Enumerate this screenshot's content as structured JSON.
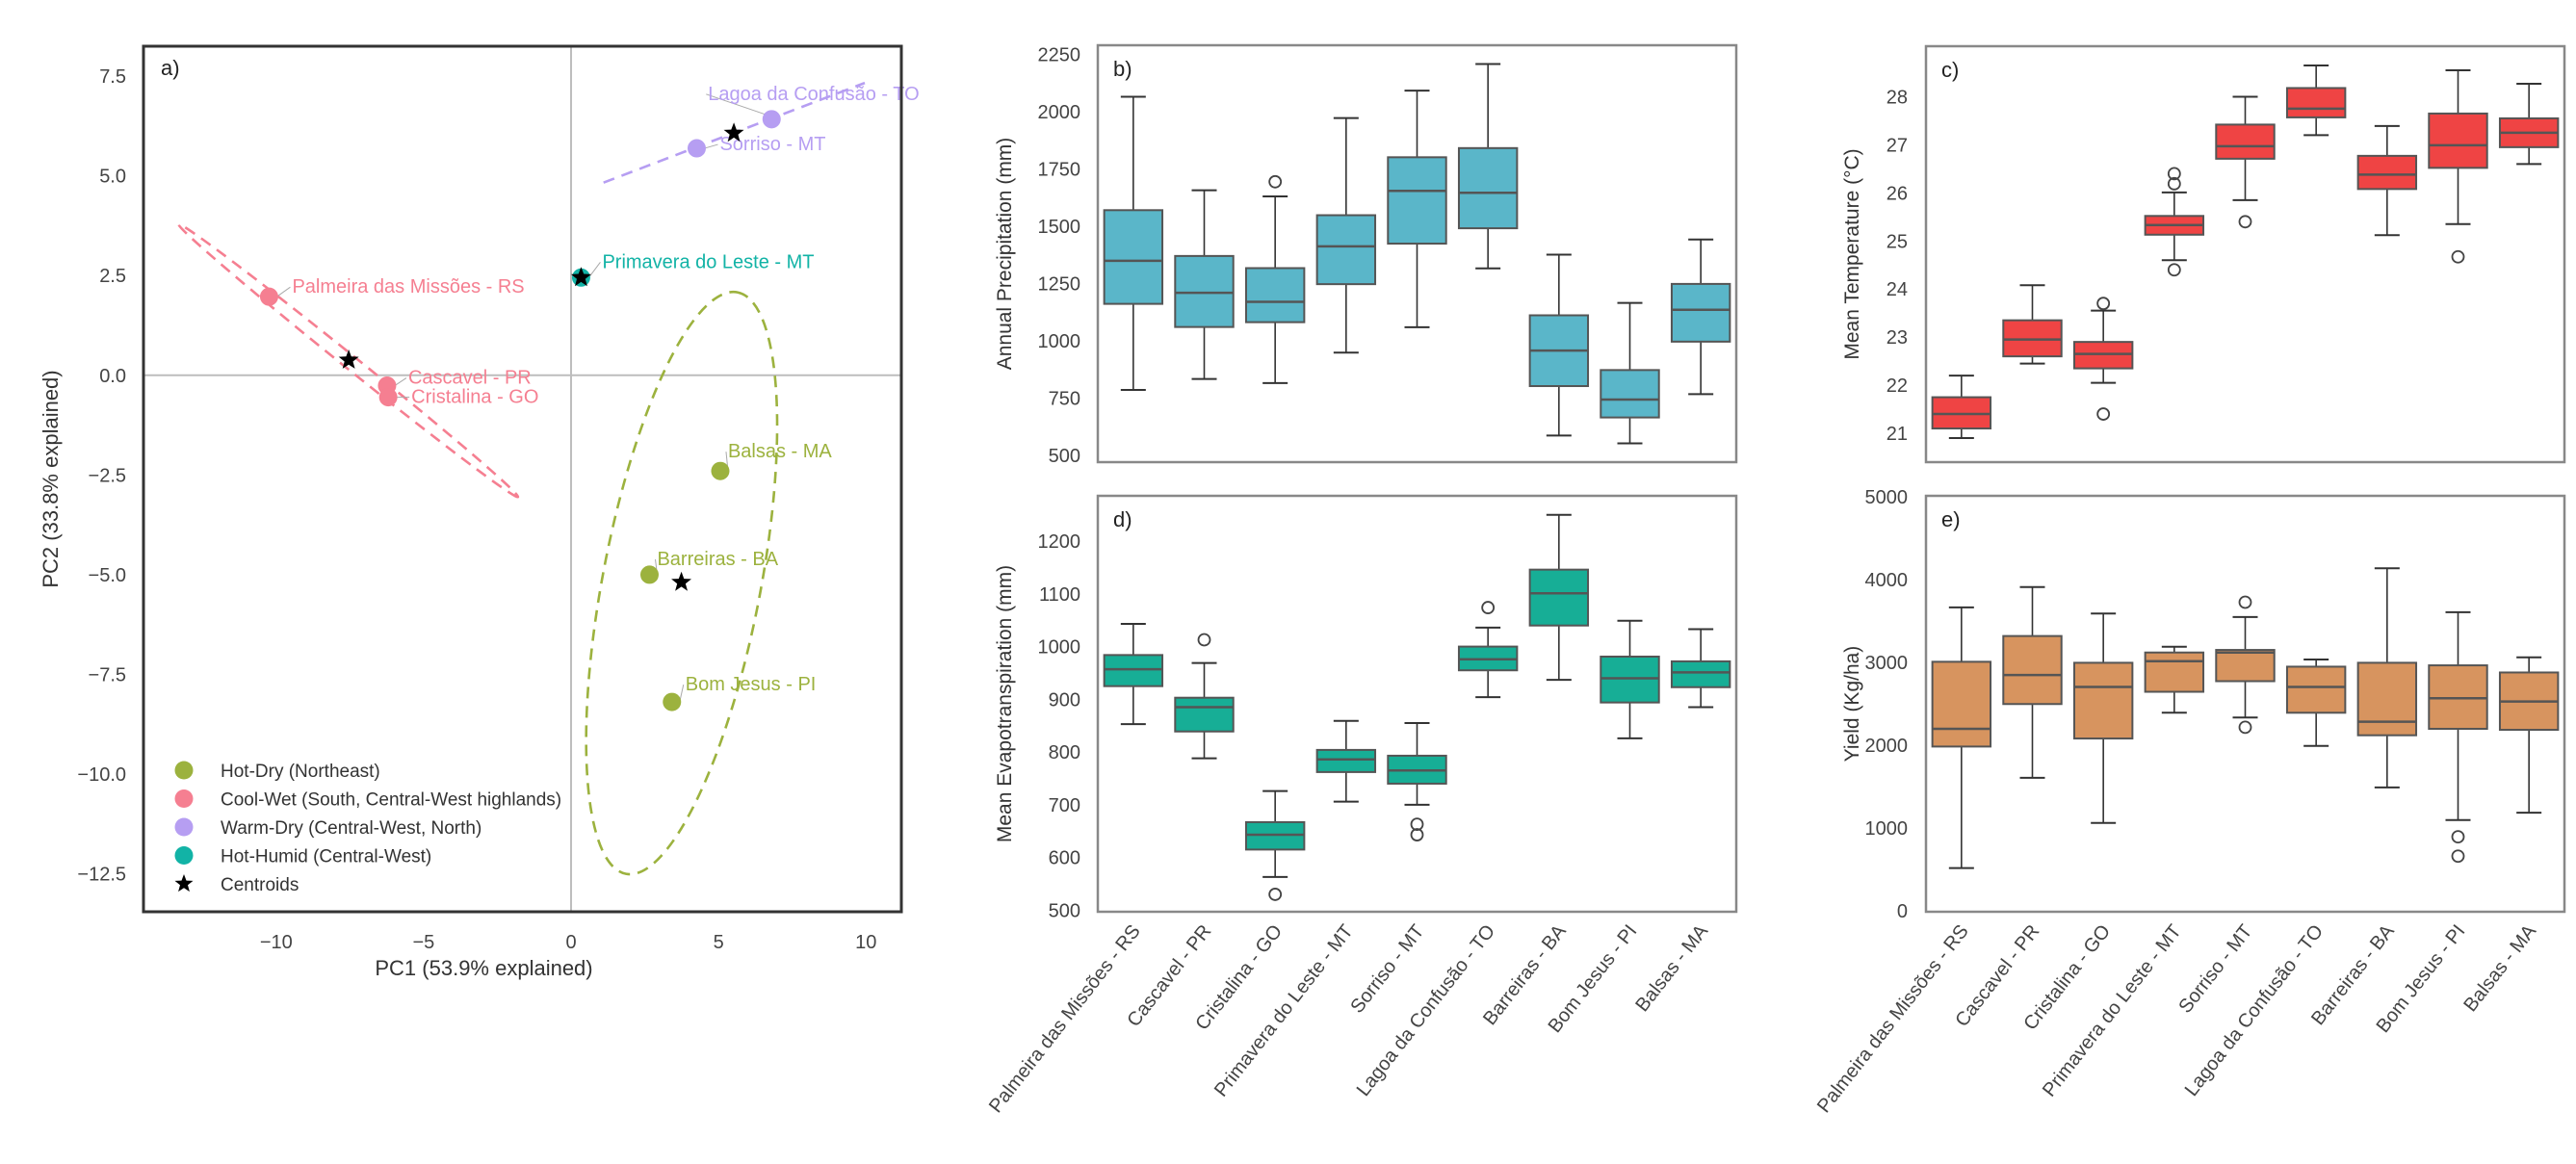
{
  "chart_data": [
    {
      "type": "scatter",
      "panel_label": "a)",
      "xlabel": "PC1 (53.9% explained)",
      "ylabel": "PC2 (33.8% explained)",
      "xlim": [
        -14.5,
        11.2
      ],
      "ylim": [
        -13.45,
        8.25
      ],
      "xticks": [
        -10,
        -5,
        0,
        5,
        10
      ],
      "xtick_labels": [
        "−10",
        "−5",
        "0",
        "5",
        "10"
      ],
      "yticks": [
        7.5,
        5.0,
        2.5,
        0.0,
        -2.5,
        -5.0,
        -7.5,
        -10.0,
        -12.5
      ],
      "ytick_labels": [
        "7.5",
        "5.0",
        "2.5",
        "0.0",
        "−2.5",
        "−5.0",
        "−7.5",
        "−10.0",
        "−12.5"
      ],
      "reference_lines": {
        "x": 0,
        "y": 0
      },
      "grid": false,
      "legend_position": "bottom-left",
      "groups": [
        {
          "name": "Hot-Dry (Northeast)",
          "color": "#9cb23e"
        },
        {
          "name": "Cool-Wet (South, Central-West highlands)",
          "color": "#f57f91"
        },
        {
          "name": "Warm-Dry (Central-West, North)",
          "color": "#b69ef2"
        },
        {
          "name": "Hot-Humid (Central-West)",
          "color": "#12b3a6"
        }
      ],
      "centroid_legend": "Centroids",
      "points": [
        {
          "site": "Palmeira das Missões - RS",
          "group": 1,
          "x": -10.24,
          "y": 1.97
        },
        {
          "site": "Cascavel - PR",
          "group": 1,
          "x": -6.24,
          "y": -0.26
        },
        {
          "site": "Cristalina - GO",
          "group": 1,
          "x": -6.2,
          "y": -0.55
        },
        {
          "site": "Primavera do Leste - MT",
          "group": 3,
          "x": 0.34,
          "y": 2.45
        },
        {
          "site": "Sorriso - MT",
          "group": 2,
          "x": 4.26,
          "y": 5.69
        },
        {
          "site": "Lagoa da Confusão - TO",
          "group": 2,
          "x": 6.8,
          "y": 6.42
        },
        {
          "site": "Balsas - MA",
          "group": 0,
          "x": 5.06,
          "y": -2.4
        },
        {
          "site": "Barreiras - BA",
          "group": 0,
          "x": 2.66,
          "y": -5.0
        },
        {
          "site": "Bom Jesus - PI",
          "group": 0,
          "x": 3.42,
          "y": -8.19
        }
      ],
      "centroids": [
        {
          "group": 1,
          "x": -7.54,
          "y": 0.38
        },
        {
          "group": 3,
          "x": 0.34,
          "y": 2.45
        },
        {
          "group": 2,
          "x": 5.52,
          "y": 6.07
        },
        {
          "group": 0,
          "x": 3.74,
          "y": -5.19
        }
      ],
      "ellipses": [
        {
          "group": 0,
          "major_axis_from": [
            1.86,
            -12.5
          ],
          "major_axis_to": [
            5.64,
            2.08
          ]
        },
        {
          "group": 1,
          "major_axis_from": [
            -13.3,
            3.78
          ],
          "major_axis_to": [
            -1.8,
            -3.05
          ]
        },
        {
          "group": 2,
          "major_axis_from": [
            1.1,
            4.83
          ],
          "major_axis_to": [
            9.96,
            7.33
          ]
        }
      ]
    },
    {
      "type": "box",
      "panel_label": "b)",
      "ylabel": "Annual Precipitation (mm)",
      "ylim": [
        470,
        2290
      ],
      "yticks": [
        500,
        750,
        1000,
        1250,
        1500,
        1750,
        2000,
        2250
      ],
      "color": "#5ab6c9",
      "categories": [
        "Palmeira das Missões - RS",
        "Cascavel - PR",
        "Cristalina - GO",
        "Primavera do Leste - MT",
        "Sorriso - MT",
        "Lagoa da Confusão - TO",
        "Barreiras - BA",
        "Bom Jesus - PI",
        "Balsas - MA"
      ],
      "show_categories": false,
      "boxes": [
        {
          "min": 785,
          "q1": 1161,
          "median": 1349,
          "q3": 1570,
          "max": 2065,
          "outliers": []
        },
        {
          "min": 833,
          "q1": 1060,
          "median": 1209,
          "q3": 1370,
          "max": 1657,
          "outliers": []
        },
        {
          "min": 815,
          "q1": 1081,
          "median": 1170,
          "q3": 1317,
          "max": 1630,
          "outliers": [
            1694
          ]
        },
        {
          "min": 948,
          "q1": 1247,
          "median": 1412,
          "q3": 1548,
          "max": 1972,
          "outliers": []
        },
        {
          "min": 1059,
          "q1": 1424,
          "median": 1654,
          "q3": 1801,
          "max": 2092,
          "outliers": []
        },
        {
          "min": 1316,
          "q1": 1491,
          "median": 1646,
          "q3": 1841,
          "max": 2208,
          "outliers": []
        },
        {
          "min": 586,
          "q1": 802,
          "median": 957,
          "q3": 1111,
          "max": 1376,
          "outliers": []
        },
        {
          "min": 552,
          "q1": 665,
          "median": 743,
          "q3": 872,
          "max": 1165,
          "outliers": []
        },
        {
          "min": 767,
          "q1": 996,
          "median": 1135,
          "q3": 1248,
          "max": 1442,
          "outliers": []
        }
      ]
    },
    {
      "type": "box",
      "panel_label": "c)",
      "ylabel": "Mean Temperature (°C)",
      "ylim": [
        20.4,
        29.05
      ],
      "yticks": [
        21,
        22,
        23,
        24,
        25,
        26,
        27,
        28
      ],
      "color": "#ef4444",
      "categories": [
        "Palmeira das Missões - RS",
        "Cascavel - PR",
        "Cristalina - GO",
        "Primavera do Leste - MT",
        "Sorriso - MT",
        "Lagoa da Confusão - TO",
        "Barreiras - BA",
        "Bom Jesus - PI",
        "Balsas - MA"
      ],
      "show_categories": false,
      "boxes": [
        {
          "min": 20.9,
          "q1": 21.1,
          "median": 21.4,
          "q3": 21.75,
          "max": 22.2,
          "outliers": []
        },
        {
          "min": 22.45,
          "q1": 22.6,
          "median": 22.95,
          "q3": 23.35,
          "max": 24.08,
          "outliers": []
        },
        {
          "min": 22.05,
          "q1": 22.35,
          "median": 22.65,
          "q3": 22.9,
          "max": 23.55,
          "outliers": [
            21.4,
            23.7
          ]
        },
        {
          "min": 24.6,
          "q1": 25.13,
          "median": 25.33,
          "q3": 25.52,
          "max": 26.01,
          "outliers": [
            24.4,
            26.19,
            26.4
          ]
        },
        {
          "min": 25.85,
          "q1": 26.71,
          "median": 26.97,
          "q3": 27.42,
          "max": 28.0,
          "outliers": [
            25.4
          ]
        },
        {
          "min": 27.2,
          "q1": 27.57,
          "median": 27.75,
          "q3": 28.18,
          "max": 28.65,
          "outliers": []
        },
        {
          "min": 25.12,
          "q1": 26.08,
          "median": 26.38,
          "q3": 26.77,
          "max": 27.39,
          "outliers": []
        },
        {
          "min": 25.35,
          "q1": 26.52,
          "median": 26.99,
          "q3": 27.65,
          "max": 28.55,
          "outliers": [
            24.67
          ]
        },
        {
          "min": 26.6,
          "q1": 26.95,
          "median": 27.25,
          "q3": 27.55,
          "max": 28.27,
          "outliers": []
        }
      ]
    },
    {
      "type": "box",
      "panel_label": "d)",
      "ylabel": "Mean Evapotranspiration (mm)",
      "ylim": [
        497,
        1286
      ],
      "yticks": [
        500,
        600,
        700,
        800,
        900,
        1000,
        1100,
        1200
      ],
      "color": "#17ae96",
      "categories": [
        "Palmeira das Missões - RS",
        "Cascavel - PR",
        "Cristalina - GO",
        "Primavera do Leste - MT",
        "Sorriso - MT",
        "Lagoa da Confusão - TO",
        "Barreiras - BA",
        "Bom Jesus - PI",
        "Balsas - MA"
      ],
      "show_categories": true,
      "boxes": [
        {
          "min": 853,
          "q1": 925,
          "median": 957,
          "q3": 984,
          "max": 1043,
          "outliers": []
        },
        {
          "min": 788,
          "q1": 839,
          "median": 885,
          "q3": 903,
          "max": 969,
          "outliers": [
            1013
          ]
        },
        {
          "min": 563,
          "q1": 615,
          "median": 643,
          "q3": 667,
          "max": 726,
          "outliers": [
            530
          ]
        },
        {
          "min": 706,
          "q1": 762,
          "median": 786,
          "q3": 804,
          "max": 859,
          "outliers": []
        },
        {
          "min": 700,
          "q1": 740,
          "median": 765,
          "q3": 793,
          "max": 855,
          "outliers": [
            663,
            643
          ]
        },
        {
          "min": 904,
          "q1": 955,
          "median": 976,
          "q3": 1000,
          "max": 1036,
          "outliers": [
            1074
          ]
        },
        {
          "min": 937,
          "q1": 1040,
          "median": 1101,
          "q3": 1146,
          "max": 1250,
          "outliers": []
        },
        {
          "min": 826,
          "q1": 894,
          "median": 940,
          "q3": 981,
          "max": 1049,
          "outliers": []
        },
        {
          "min": 885,
          "q1": 923,
          "median": 951,
          "q3": 972,
          "max": 1033,
          "outliers": []
        }
      ]
    },
    {
      "type": "box",
      "panel_label": "e)",
      "ylabel": "Yield (Kg/ha)",
      "ylim": [
        -10,
        5010
      ],
      "yticks": [
        0,
        1000,
        2000,
        3000,
        4000,
        5000
      ],
      "color": "#d7945f",
      "categories": [
        "Palmeira das Missões - RS",
        "Cascavel - PR",
        "Cristalina - GO",
        "Primavera do Leste - MT",
        "Sorriso - MT",
        "Lagoa da Confusão - TO",
        "Barreiras - BA",
        "Bom Jesus - PI",
        "Balsas - MA"
      ],
      "show_categories": true,
      "boxes": [
        {
          "min": 517,
          "q1": 1984,
          "median": 2198,
          "q3": 3007,
          "max": 3664,
          "outliers": []
        },
        {
          "min": 1606,
          "q1": 2497,
          "median": 2847,
          "q3": 3318,
          "max": 3909,
          "outliers": []
        },
        {
          "min": 1062,
          "q1": 2081,
          "median": 2703,
          "q3": 2995,
          "max": 3590,
          "outliers": []
        },
        {
          "min": 2392,
          "q1": 2645,
          "median": 3014,
          "q3": 3119,
          "max": 3189,
          "outliers": []
        },
        {
          "min": 2334,
          "q1": 2773,
          "median": 3119,
          "q3": 3150,
          "max": 3547,
          "outliers": [
            3726,
            2217
          ]
        },
        {
          "min": 1991,
          "q1": 2392,
          "median": 2703,
          "q3": 2948,
          "max": 3034,
          "outliers": []
        },
        {
          "min": 1490,
          "q1": 2120,
          "median": 2283,
          "q3": 2995,
          "max": 4135,
          "outliers": []
        },
        {
          "min": 1097,
          "q1": 2198,
          "median": 2567,
          "q3": 2964,
          "max": 3606,
          "outliers": [
            895,
            661
          ]
        },
        {
          "min": 1186,
          "q1": 2186,
          "median": 2528,
          "q3": 2878,
          "max": 3061,
          "outliers": []
        }
      ]
    }
  ]
}
